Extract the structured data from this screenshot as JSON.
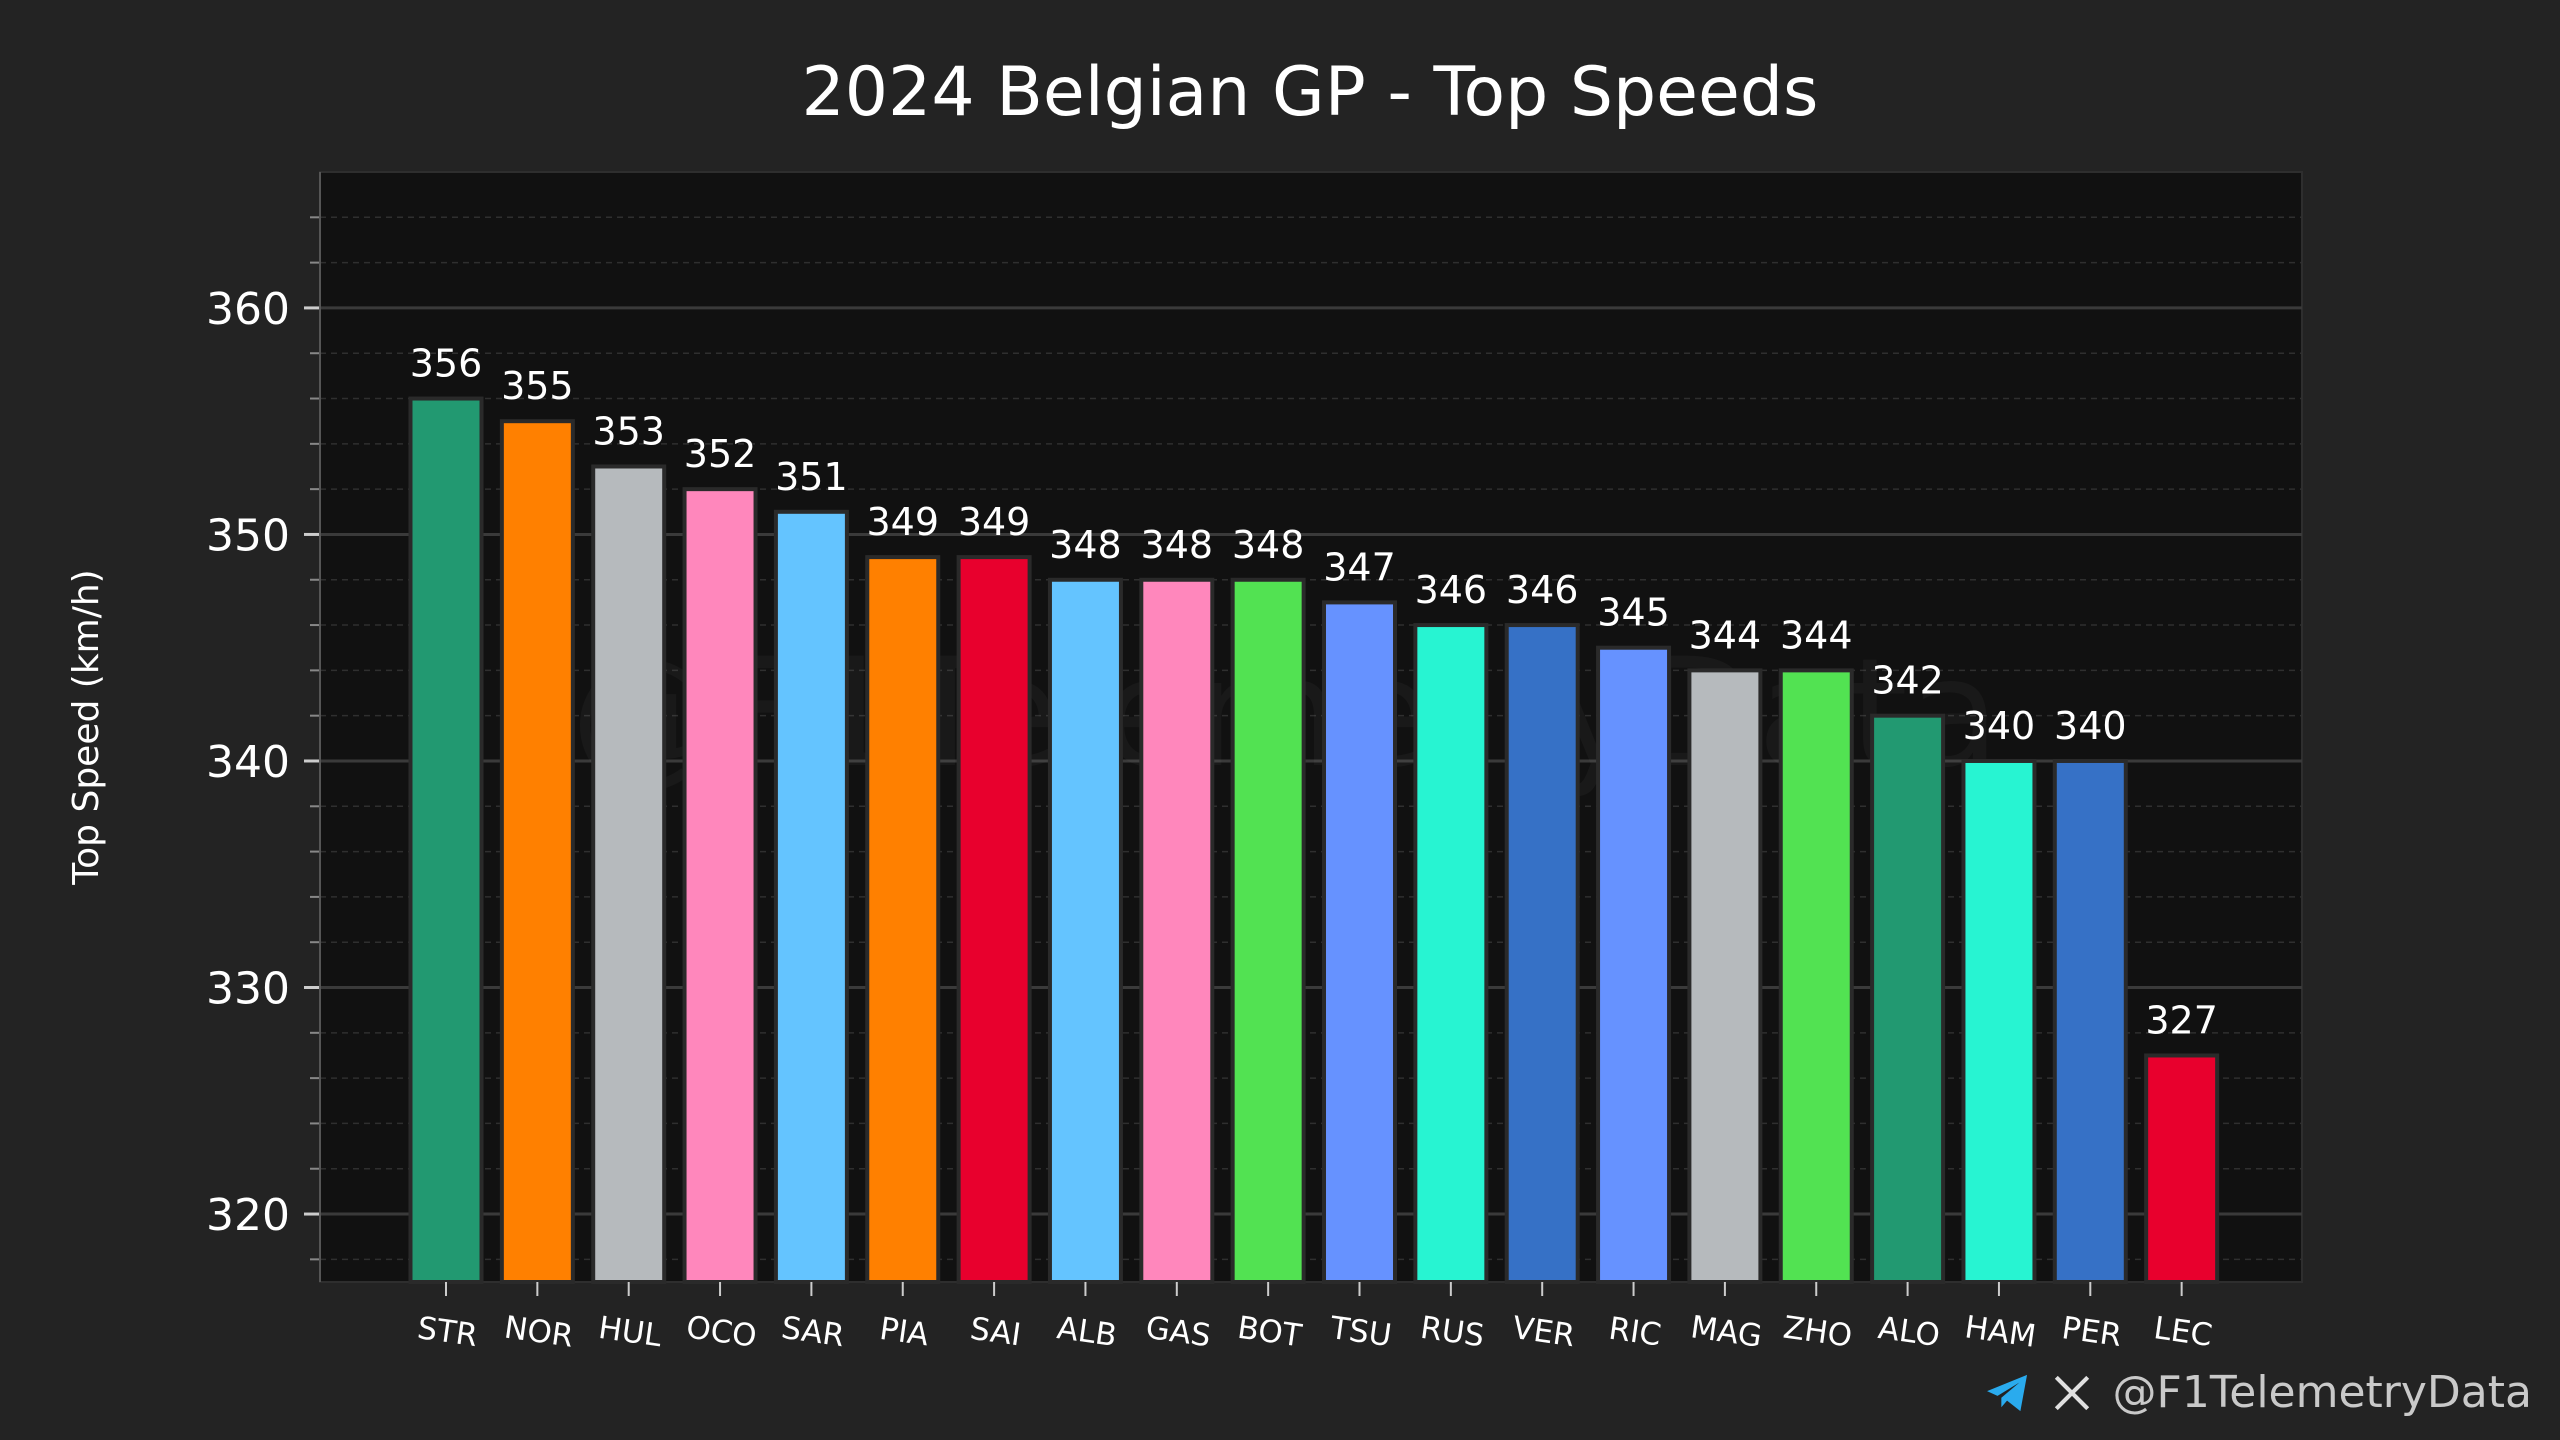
{
  "chart_data": {
    "type": "bar",
    "title": "2024 Belgian GP - Top Speeds",
    "xlabel": "",
    "ylabel": "Top Speed (km/h)",
    "ylim": [
      317,
      366
    ],
    "yticks": [
      320,
      330,
      340,
      350,
      360
    ],
    "grid": true,
    "categories": [
      "STR",
      "NOR",
      "HUL",
      "OCO",
      "SAR",
      "PIA",
      "SAI",
      "ALB",
      "GAS",
      "BOT",
      "TSU",
      "RUS",
      "VER",
      "RIC",
      "MAG",
      "ZHO",
      "ALO",
      "HAM",
      "PER",
      "LEC"
    ],
    "values": [
      356,
      355,
      353,
      352,
      351,
      349,
      349,
      348,
      348,
      348,
      347,
      346,
      346,
      345,
      344,
      344,
      342,
      340,
      340,
      327
    ],
    "colors": [
      "#229971",
      "#FF8000",
      "#B6BABD",
      "#FF87BC",
      "#64C4FF",
      "#FF8000",
      "#E8002D",
      "#64C4FF",
      "#FF87BC",
      "#52E252",
      "#6692FF",
      "#27F4D2",
      "#3671C6",
      "#6692FF",
      "#B6BABD",
      "#52E252",
      "#229971",
      "#27F4D2",
      "#3671C6",
      "#E8002D"
    ],
    "watermark": "@F1TelemetryData"
  },
  "credit": {
    "handle": "@F1TelemetryData",
    "icons": [
      "telegram-icon",
      "x-icon"
    ]
  },
  "theme": {
    "background": "#232323",
    "plot_background": "#111111",
    "text": "#ffffff",
    "grid": "#3a3a3a"
  }
}
